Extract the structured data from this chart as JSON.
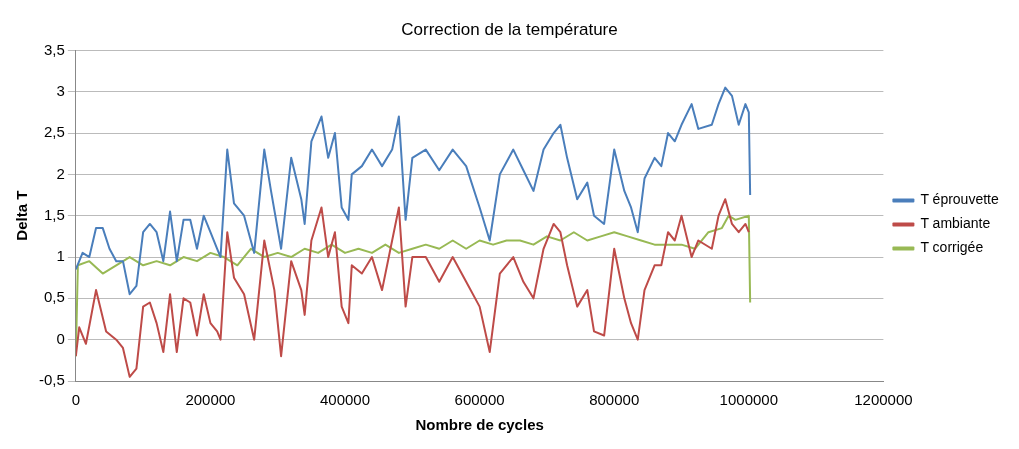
{
  "chart_data": {
    "type": "line",
    "title": "Correction de la température",
    "xlabel": "Nombre de cycles",
    "ylabel": "Delta T",
    "xlim": [
      0,
      1200000
    ],
    "xticks": [
      0,
      200000,
      400000,
      600000,
      800000,
      1000000,
      1200000
    ],
    "ylim": [
      -0.5,
      3.5
    ],
    "yticks": [
      {
        "value": -0.5,
        "label": "-0,5"
      },
      {
        "value": 0,
        "label": "0"
      },
      {
        "value": 0.5,
        "label": "0,5"
      },
      {
        "value": 1,
        "label": "1"
      },
      {
        "value": 1.5,
        "label": "1,5"
      },
      {
        "value": 2,
        "label": "2"
      },
      {
        "value": 2.5,
        "label": "2,5"
      },
      {
        "value": 3,
        "label": "3"
      },
      {
        "value": 3.5,
        "label": "3,5"
      }
    ],
    "grid": "y",
    "legend": "right",
    "marker": "none",
    "line_style": "solid",
    "series": [
      {
        "name": "T éprouvette",
        "color": "#4a7ebb",
        "x": [
          0,
          10000,
          20000,
          30000,
          40000,
          50000,
          60000,
          70000,
          80000,
          90000,
          100000,
          110000,
          120000,
          130000,
          140000,
          150000,
          160000,
          170000,
          180000,
          190000,
          200000,
          210000,
          215000,
          225000,
          235000,
          250000,
          265000,
          280000,
          290000,
          305000,
          320000,
          335000,
          340000,
          350000,
          365000,
          375000,
          385000,
          395000,
          405000,
          410000,
          425000,
          440000,
          455000,
          470000,
          480000,
          490000,
          500000,
          520000,
          540000,
          560000,
          580000,
          600000,
          615000,
          630000,
          650000,
          665000,
          680000,
          695000,
          710000,
          720000,
          730000,
          745000,
          760000,
          770000,
          785000,
          800000,
          815000,
          825000,
          835000,
          845000,
          860000,
          870000,
          880000,
          890000,
          900000,
          915000,
          925000,
          945000,
          955000,
          965000,
          975000,
          985000,
          995000,
          1000000,
          1002000
        ],
        "values": [
          0.85,
          1.05,
          1.0,
          1.35,
          1.35,
          1.1,
          0.95,
          0.95,
          0.55,
          0.65,
          1.3,
          1.4,
          1.3,
          0.95,
          1.55,
          0.95,
          1.45,
          1.45,
          1.1,
          1.5,
          1.3,
          1.1,
          1.0,
          2.3,
          1.65,
          1.5,
          1.05,
          2.3,
          1.8,
          1.1,
          2.2,
          1.7,
          1.4,
          2.4,
          2.7,
          2.2,
          2.5,
          1.6,
          1.45,
          2.0,
          2.1,
          2.3,
          2.1,
          2.3,
          2.7,
          1.45,
          2.2,
          2.3,
          2.05,
          2.3,
          2.1,
          1.6,
          1.2,
          2.0,
          2.3,
          2.05,
          1.8,
          2.3,
          2.5,
          2.6,
          2.2,
          1.7,
          1.9,
          1.5,
          1.4,
          2.3,
          1.8,
          1.6,
          1.3,
          1.95,
          2.2,
          2.1,
          2.5,
          2.4,
          2.6,
          2.85,
          2.55,
          2.6,
          2.85,
          3.05,
          2.95,
          2.6,
          2.85,
          2.75,
          1.75
        ]
      },
      {
        "name": "T ambiante",
        "color": "#be4b48",
        "x": [
          0,
          5000,
          15000,
          30000,
          45000,
          60000,
          70000,
          80000,
          90000,
          100000,
          110000,
          120000,
          130000,
          140000,
          150000,
          160000,
          170000,
          180000,
          190000,
          200000,
          210000,
          215000,
          225000,
          235000,
          250000,
          265000,
          280000,
          295000,
          305000,
          320000,
          335000,
          340000,
          350000,
          365000,
          375000,
          385000,
          395000,
          405000,
          410000,
          425000,
          440000,
          455000,
          470000,
          480000,
          490000,
          500000,
          520000,
          540000,
          560000,
          580000,
          600000,
          615000,
          630000,
          650000,
          665000,
          680000,
          695000,
          710000,
          720000,
          730000,
          745000,
          760000,
          770000,
          785000,
          800000,
          815000,
          825000,
          835000,
          845000,
          860000,
          870000,
          880000,
          890000,
          900000,
          915000,
          925000,
          945000,
          955000,
          965000,
          975000,
          985000,
          995000,
          1000000
        ],
        "values": [
          -0.2,
          0.15,
          -0.05,
          0.6,
          0.1,
          0.0,
          -0.1,
          -0.45,
          -0.35,
          0.4,
          0.45,
          0.2,
          -0.15,
          0.55,
          -0.15,
          0.5,
          0.45,
          0.05,
          0.55,
          0.2,
          0.1,
          0.0,
          1.3,
          0.75,
          0.55,
          0.0,
          1.2,
          0.6,
          -0.2,
          0.95,
          0.6,
          0.3,
          1.2,
          1.6,
          1.0,
          1.3,
          0.4,
          0.2,
          0.9,
          0.8,
          1.0,
          0.6,
          1.2,
          1.6,
          0.4,
          1.0,
          1.0,
          0.7,
          1.0,
          0.7,
          0.4,
          -0.15,
          0.8,
          1.0,
          0.7,
          0.5,
          1.1,
          1.4,
          1.3,
          0.9,
          0.4,
          0.6,
          0.1,
          0.05,
          1.1,
          0.5,
          0.2,
          0.0,
          0.6,
          0.9,
          0.9,
          1.3,
          1.2,
          1.5,
          1.0,
          1.2,
          1.1,
          1.5,
          1.7,
          1.4,
          1.3,
          1.4,
          1.3
        ]
      },
      {
        "name": "T corrigée",
        "color": "#98b954",
        "x": [
          0,
          3000,
          20000,
          40000,
          60000,
          80000,
          100000,
          120000,
          140000,
          160000,
          180000,
          200000,
          220000,
          240000,
          260000,
          280000,
          300000,
          320000,
          340000,
          360000,
          380000,
          400000,
          420000,
          440000,
          460000,
          480000,
          500000,
          520000,
          540000,
          560000,
          580000,
          600000,
          620000,
          640000,
          660000,
          680000,
          700000,
          720000,
          740000,
          760000,
          780000,
          800000,
          820000,
          840000,
          860000,
          880000,
          900000,
          920000,
          940000,
          960000,
          970000,
          980000,
          1000000,
          1002000
        ],
        "values": [
          -0.2,
          0.9,
          0.95,
          0.8,
          0.9,
          1.0,
          0.9,
          0.95,
          0.9,
          1.0,
          0.95,
          1.05,
          1.0,
          0.9,
          1.1,
          1.0,
          1.05,
          1.0,
          1.1,
          1.05,
          1.15,
          1.05,
          1.1,
          1.05,
          1.15,
          1.05,
          1.1,
          1.15,
          1.1,
          1.2,
          1.1,
          1.2,
          1.15,
          1.2,
          1.2,
          1.15,
          1.25,
          1.2,
          1.3,
          1.2,
          1.25,
          1.3,
          1.25,
          1.2,
          1.15,
          1.15,
          1.15,
          1.1,
          1.3,
          1.35,
          1.5,
          1.45,
          1.5,
          0.45
        ]
      }
    ]
  }
}
